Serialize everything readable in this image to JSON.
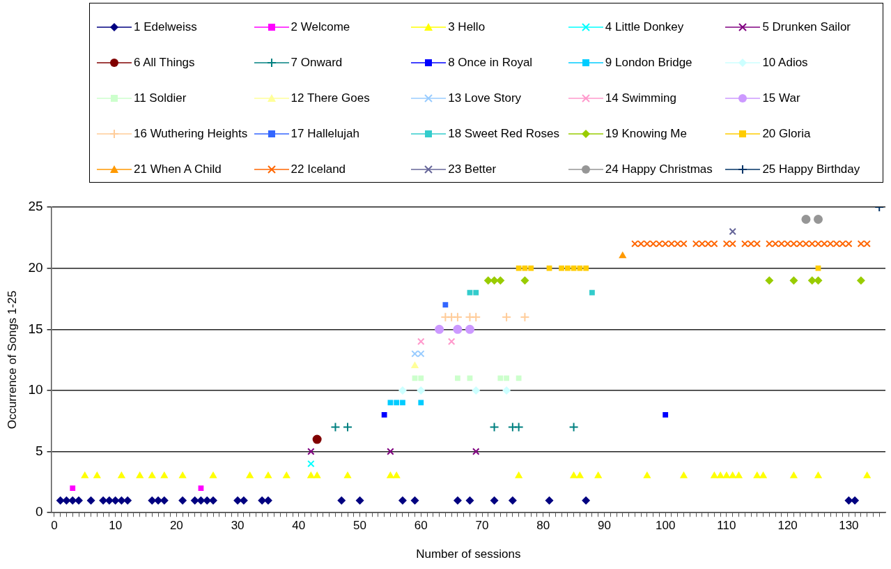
{
  "chart_data": {
    "type": "scatter",
    "xlabel": "Number of sessions",
    "ylabel": "Occurrence of Songs 1-25",
    "xlim": [
      -0.5,
      136
    ],
    "ylim": [
      0,
      25
    ],
    "yticks": [
      0,
      5,
      10,
      15,
      20,
      25
    ],
    "xticks": [
      0,
      {
        "value": 1,
        "label": null
      },
      {
        "value": 2,
        "label": null
      },
      {
        "value": 3,
        "label": null
      },
      {
        "value": 4,
        "label": null
      },
      {
        "value": 5,
        "label": null
      },
      {
        "value": 6,
        "label": null
      },
      {
        "value": 7,
        "label": null
      },
      {
        "value": 8,
        "label": null
      },
      {
        "value": 9,
        "label": null
      },
      10,
      {
        "value": 11,
        "label": null
      },
      {
        "value": 12,
        "label": null
      },
      {
        "value": 13,
        "label": null
      },
      {
        "value": 14,
        "label": null
      },
      {
        "value": 15,
        "label": null
      },
      {
        "value": 16,
        "label": null
      },
      {
        "value": 17,
        "label": null
      },
      {
        "value": 18,
        "label": null
      },
      {
        "value": 19,
        "label": null
      },
      20,
      {
        "value": 21,
        "label": null
      },
      {
        "value": 22,
        "label": null
      },
      {
        "value": 23,
        "label": null
      },
      {
        "value": 24,
        "label": null
      },
      {
        "value": 25,
        "label": null
      },
      {
        "value": 26,
        "label": null
      },
      {
        "value": 27,
        "label": null
      },
      {
        "value": 28,
        "label": null
      },
      {
        "value": 29,
        "label": null
      },
      30,
      {
        "value": 31,
        "label": null
      },
      {
        "value": 32,
        "label": null
      },
      {
        "value": 33,
        "label": null
      },
      {
        "value": 34,
        "label": null
      },
      {
        "value": 35,
        "label": null
      },
      {
        "value": 36,
        "label": null
      },
      {
        "value": 37,
        "label": null
      },
      {
        "value": 38,
        "label": null
      },
      {
        "value": 39,
        "label": null
      },
      40,
      {
        "value": 41,
        "label": null
      },
      {
        "value": 42,
        "label": null
      },
      {
        "value": 43,
        "label": null
      },
      {
        "value": 44,
        "label": null
      },
      {
        "value": 45,
        "label": null
      },
      {
        "value": 46,
        "label": null
      },
      {
        "value": 47,
        "label": null
      },
      {
        "value": 48,
        "label": null
      },
      {
        "value": 49,
        "label": null
      },
      50,
      {
        "value": 51,
        "label": null
      },
      {
        "value": 52,
        "label": null
      },
      {
        "value": 53,
        "label": null
      },
      {
        "value": 54,
        "label": null
      },
      {
        "value": 55,
        "label": null
      },
      {
        "value": 56,
        "label": null
      },
      {
        "value": 57,
        "label": null
      },
      {
        "value": 58,
        "label": null
      },
      {
        "value": 59,
        "label": null
      },
      60,
      {
        "value": 61,
        "label": null
      },
      {
        "value": 62,
        "label": null
      },
      {
        "value": 63,
        "label": null
      },
      {
        "value": 64,
        "label": null
      },
      {
        "value": 65,
        "label": null
      },
      {
        "value": 66,
        "label": null
      },
      {
        "value": 67,
        "label": null
      },
      {
        "value": 68,
        "label": null
      },
      {
        "value": 69,
        "label": null
      },
      70,
      {
        "value": 71,
        "label": null
      },
      {
        "value": 72,
        "label": null
      },
      {
        "value": 73,
        "label": null
      },
      {
        "value": 74,
        "label": null
      },
      {
        "value": 75,
        "label": null
      },
      {
        "value": 76,
        "label": null
      },
      {
        "value": 77,
        "label": null
      },
      {
        "value": 78,
        "label": null
      },
      {
        "value": 79,
        "label": null
      },
      80,
      {
        "value": 81,
        "label": null
      },
      {
        "value": 82,
        "label": null
      },
      {
        "value": 83,
        "label": null
      },
      {
        "value": 84,
        "label": null
      },
      {
        "value": 85,
        "label": null
      },
      {
        "value": 86,
        "label": null
      },
      {
        "value": 87,
        "label": null
      },
      {
        "value": 88,
        "label": null
      },
      {
        "value": 89,
        "label": null
      },
      90,
      {
        "value": 91,
        "label": null
      },
      {
        "value": 92,
        "label": null
      },
      {
        "value": 93,
        "label": null
      },
      {
        "value": 94,
        "label": null
      },
      {
        "value": 95,
        "label": null
      },
      {
        "value": 96,
        "label": null
      },
      {
        "value": 97,
        "label": null
      },
      {
        "value": 98,
        "label": null
      },
      {
        "value": 99,
        "label": null
      },
      100,
      {
        "value": 101,
        "label": null
      },
      {
        "value": 102,
        "label": null
      },
      {
        "value": 103,
        "label": null
      },
      {
        "value": 104,
        "label": null
      },
      {
        "value": 105,
        "label": null
      },
      {
        "value": 106,
        "label": null
      },
      {
        "value": 107,
        "label": null
      },
      {
        "value": 108,
        "label": null
      },
      {
        "value": 109,
        "label": null
      },
      110,
      {
        "value": 111,
        "label": null
      },
      {
        "value": 112,
        "label": null
      },
      {
        "value": 113,
        "label": null
      },
      {
        "value": 114,
        "label": null
      },
      {
        "value": 115,
        "label": null
      },
      {
        "value": 116,
        "label": null
      },
      {
        "value": 117,
        "label": null
      },
      {
        "value": 118,
        "label": null
      },
      {
        "value": 119,
        "label": null
      },
      120,
      {
        "value": 121,
        "label": null
      },
      {
        "value": 122,
        "label": null
      },
      {
        "value": 123,
        "label": null
      },
      {
        "value": 124,
        "label": null
      },
      {
        "value": 125,
        "label": null
      },
      {
        "value": 126,
        "label": null
      },
      {
        "value": 127,
        "label": null
      },
      {
        "value": 128,
        "label": null
      },
      {
        "value": 129,
        "label": null
      },
      130,
      {
        "value": 131,
        "label": null
      },
      {
        "value": 132,
        "label": null
      },
      {
        "value": 133,
        "label": null
      },
      {
        "value": 134,
        "label": null
      },
      {
        "value": 135,
        "label": null
      }
    ],
    "grid": "y",
    "legend": "top",
    "series": [
      {
        "name": "1 Edelweiss",
        "color": "#000080",
        "marker": "diamond",
        "x": [
          1,
          2,
          3,
          4,
          6,
          8,
          9,
          10,
          11,
          12,
          16,
          17,
          18,
          21,
          23,
          24,
          25,
          26,
          30,
          31,
          34,
          35,
          47,
          50,
          57,
          59,
          66,
          68,
          72,
          75,
          81,
          87,
          130,
          131
        ],
        "values": [
          1,
          1,
          1,
          1,
          1,
          1,
          1,
          1,
          1,
          1,
          1,
          1,
          1,
          1,
          1,
          1,
          1,
          1,
          1,
          1,
          1,
          1,
          1,
          1,
          1,
          1,
          1,
          1,
          1,
          1,
          1,
          1,
          1,
          1
        ]
      },
      {
        "name": "2 Welcome",
        "color": "#ff00ff",
        "marker": "square",
        "x": [
          3,
          24
        ],
        "values": [
          2,
          2
        ]
      },
      {
        "name": "3 Hello",
        "color": "#ffff00",
        "marker": "triangle",
        "x": [
          5,
          7,
          11,
          14,
          16,
          18,
          21,
          26,
          32,
          35,
          38,
          42,
          43,
          48,
          55,
          56,
          76,
          85,
          86,
          89,
          97,
          103,
          108,
          109,
          110,
          111,
          112,
          115,
          116,
          121,
          125,
          133
        ],
        "values": [
          3,
          3,
          3,
          3,
          3,
          3,
          3,
          3,
          3,
          3,
          3,
          3,
          3,
          3,
          3,
          3,
          3,
          3,
          3,
          3,
          3,
          3,
          3,
          3,
          3,
          3,
          3,
          3,
          3,
          3,
          3,
          3
        ]
      },
      {
        "name": "4 Little Donkey",
        "color": "#00ffff",
        "marker": "cross",
        "x": [
          42
        ],
        "values": [
          4
        ]
      },
      {
        "name": "5 Drunken Sailor",
        "color": "#800080",
        "marker": "cross",
        "x": [
          42,
          55,
          69
        ],
        "values": [
          5,
          5,
          5
        ]
      },
      {
        "name": "6 All Things",
        "color": "#800000",
        "marker": "circle",
        "x": [
          43
        ],
        "values": [
          6
        ]
      },
      {
        "name": "7 Onward",
        "color": "#008080",
        "marker": "plus",
        "x": [
          46,
          48,
          72,
          75,
          76,
          85
        ],
        "values": [
          7,
          7,
          7,
          7,
          7,
          7
        ]
      },
      {
        "name": "8 Once in Royal",
        "color": "#0000ff",
        "marker": "square",
        "x": [
          54,
          100
        ],
        "values": [
          8,
          8
        ]
      },
      {
        "name": "9 London Bridge",
        "color": "#00ccff",
        "marker": "square",
        "x": [
          55,
          56,
          57,
          60
        ],
        "values": [
          9,
          9,
          9,
          9
        ]
      },
      {
        "name": "10 Adios",
        "color": "#ccffff",
        "marker": "diamond",
        "x": [
          57,
          60,
          69,
          74
        ],
        "values": [
          10,
          10,
          10,
          10
        ]
      },
      {
        "name": "11 Soldier",
        "color": "#ccffcc",
        "marker": "square",
        "x": [
          59,
          60,
          66,
          68,
          73,
          74,
          76
        ],
        "values": [
          11,
          11,
          11,
          11,
          11,
          11,
          11
        ]
      },
      {
        "name": "12 There Goes",
        "color": "#ffff99",
        "marker": "triangle",
        "x": [
          59
        ],
        "values": [
          12
        ]
      },
      {
        "name": "13 Love Story",
        "color": "#99ccff",
        "marker": "cross",
        "x": [
          59,
          60
        ],
        "values": [
          13,
          13
        ]
      },
      {
        "name": "14 Swimming",
        "color": "#ff99cc",
        "marker": "cross",
        "x": [
          60,
          65
        ],
        "values": [
          14,
          14
        ]
      },
      {
        "name": "15 War",
        "color": "#cc99ff",
        "marker": "circle",
        "x": [
          63,
          66,
          68
        ],
        "values": [
          15,
          15,
          15
        ]
      },
      {
        "name": "16 Wuthering Heights",
        "color": "#ffcc99",
        "marker": "plus",
        "x": [
          64,
          65,
          66,
          68,
          69,
          74,
          77
        ],
        "values": [
          16,
          16,
          16,
          16,
          16,
          16,
          16
        ]
      },
      {
        "name": "17 Hallelujah",
        "color": "#3366ff",
        "marker": "square",
        "x": [
          64
        ],
        "values": [
          17
        ]
      },
      {
        "name": "18 Sweet Red Roses",
        "color": "#33cccc",
        "marker": "square",
        "x": [
          68,
          69,
          88
        ],
        "values": [
          18,
          18,
          18
        ]
      },
      {
        "name": "19 Knowing Me",
        "color": "#99cc00",
        "marker": "diamond",
        "x": [
          71,
          72,
          73,
          77,
          117,
          121,
          124,
          125,
          132
        ],
        "values": [
          19,
          19,
          19,
          19,
          19,
          19,
          19,
          19,
          19
        ]
      },
      {
        "name": "20 Gloria",
        "color": "#ffcc00",
        "marker": "square",
        "x": [
          76,
          77,
          78,
          81,
          83,
          84,
          85,
          86,
          87,
          125
        ],
        "values": [
          20,
          20,
          20,
          20,
          20,
          20,
          20,
          20,
          20,
          20
        ]
      },
      {
        "name": "21 When A Child",
        "color": "#ff9900",
        "marker": "triangle",
        "x": [
          93
        ],
        "values": [
          21
        ]
      },
      {
        "name": "22 Iceland",
        "color": "#ff6600",
        "marker": "cross",
        "x": [
          95,
          96,
          97,
          98,
          99,
          100,
          101,
          102,
          103,
          105,
          106,
          107,
          108,
          110,
          111,
          113,
          114,
          115,
          117,
          118,
          119,
          120,
          121,
          122,
          123,
          124,
          125,
          126,
          127,
          128,
          129,
          130,
          132,
          133
        ],
        "values": [
          22,
          22,
          22,
          22,
          22,
          22,
          22,
          22,
          22,
          22,
          22,
          22,
          22,
          22,
          22,
          22,
          22,
          22,
          22,
          22,
          22,
          22,
          22,
          22,
          22,
          22,
          22,
          22,
          22,
          22,
          22,
          22,
          22,
          22
        ]
      },
      {
        "name": "23 Better",
        "color": "#666699",
        "marker": "cross",
        "x": [
          111
        ],
        "values": [
          23
        ]
      },
      {
        "name": "24 Happy Christmas",
        "color": "#969696",
        "marker": "circle",
        "x": [
          123,
          125
        ],
        "values": [
          24,
          24
        ]
      },
      {
        "name": "25 Happy Birthday",
        "color": "#003366",
        "marker": "plus",
        "x": [
          135
        ],
        "values": [
          25
        ]
      }
    ]
  }
}
